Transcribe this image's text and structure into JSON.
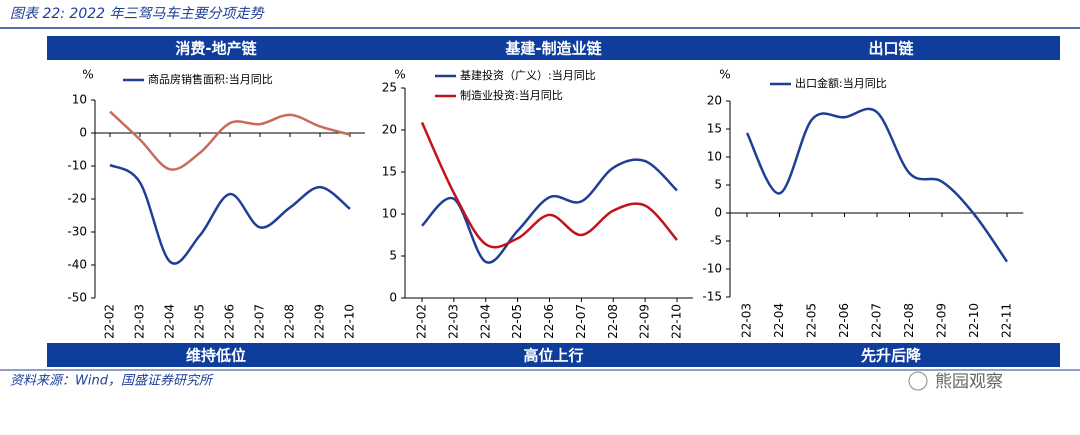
{
  "figure_title": "图表 22:  2022 年三驾马车主要分项走势",
  "source": "资料来源：Wind，国盛证券研究所",
  "watermark": "熊园观察",
  "chart_data": [
    {
      "type": "line",
      "title": "消费-地产链",
      "annotation": "维持低位",
      "y_label": "%",
      "categories": [
        "22-02",
        "22-03",
        "22-04",
        "22-05",
        "22-06",
        "22-07",
        "22-08",
        "22-09",
        "22-10"
      ],
      "series": [
        {
          "name": "商品房销售面积:当月同比",
          "color": "#1f3f96",
          "values": [
            -9.7,
            -15,
            -39,
            -31,
            -18.5,
            -28.6,
            -22.6,
            -16.4,
            -23
          ]
        },
        {
          "color": "#c86b5a",
          "values": [
            6.5,
            -2,
            -11,
            -6,
            3,
            2.7,
            5.5,
            2,
            -0.5
          ]
        }
      ],
      "ylim": [
        -50,
        10
      ],
      "yticks": [
        -50,
        -40,
        -30,
        -20,
        -10,
        0,
        10
      ]
    },
    {
      "type": "line",
      "title": "基建-制造业链",
      "annotation": "高位上行",
      "y_label": "%",
      "categories": [
        "22-02",
        "22-03",
        "22-04",
        "22-05",
        "22-06",
        "22-07",
        "22-08",
        "22-09",
        "22-10"
      ],
      "series": [
        {
          "name": "基建投资（广义）:当月同比",
          "color": "#1f3f96",
          "values": [
            8.6,
            11.8,
            4.3,
            8,
            12,
            11.5,
            15.5,
            16.3,
            12.8
          ]
        },
        {
          "name": "制造业投资:当月同比",
          "color": "#c0141b",
          "values": [
            20.9,
            12.5,
            6.4,
            7.1,
            9.9,
            7.5,
            10.4,
            11,
            6.9
          ]
        }
      ],
      "ylim": [
        0,
        25
      ],
      "yticks": [
        0,
        5,
        10,
        15,
        20,
        25
      ]
    },
    {
      "type": "line",
      "title": "出口链",
      "annotation": "先升后降",
      "y_label": "%",
      "categories": [
        "22-03",
        "22-04",
        "22-05",
        "22-06",
        "22-07",
        "22-08",
        "22-09",
        "22-10",
        "22-11"
      ],
      "series": [
        {
          "name": "出口金额:当月同比",
          "color": "#1f3f96",
          "values": [
            14.3,
            3.5,
            16.7,
            17.1,
            18,
            7.1,
            5.6,
            -0.3,
            -8.7
          ]
        }
      ],
      "ylim": [
        -15,
        20
      ],
      "yticks": [
        -15,
        -10,
        -5,
        0,
        5,
        10,
        15,
        20
      ]
    }
  ]
}
